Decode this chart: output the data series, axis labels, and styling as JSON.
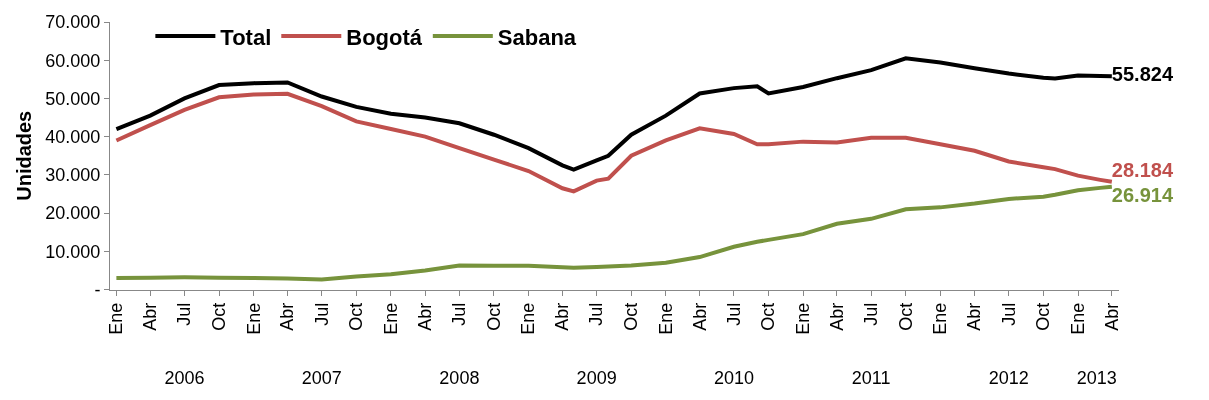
{
  "chart_data": {
    "type": "line",
    "ylabel": "Unidades",
    "x": [
      "2006-01",
      "2006-04",
      "2006-07",
      "2006-10",
      "2007-01",
      "2007-04",
      "2007-07",
      "2007-10",
      "2008-01",
      "2008-04",
      "2008-07",
      "2008-10",
      "2009-01",
      "2009-04",
      "2009-05",
      "2009-07",
      "2009-08",
      "2009-10",
      "2010-01",
      "2010-04",
      "2010-07",
      "2010-09",
      "2010-10",
      "2011-01",
      "2011-04",
      "2011-07",
      "2011-10",
      "2012-01",
      "2012-04",
      "2012-07",
      "2012-10",
      "2012-11",
      "2013-01",
      "2013-03",
      "2013-04"
    ],
    "series": [
      {
        "name": "Total",
        "color": "#000000",
        "values": [
          42000,
          45500,
          50000,
          53500,
          54000,
          54200,
          50500,
          47800,
          46000,
          45000,
          43500,
          40500,
          37000,
          32500,
          31400,
          33800,
          35000,
          40500,
          45500,
          51300,
          52700,
          53200,
          51300,
          53000,
          55300,
          57400,
          60500,
          59400,
          57900,
          56500,
          55400,
          55200,
          56000,
          55900,
          55824
        ],
        "value_labels": [
          null,
          null,
          null,
          null,
          null,
          null,
          null,
          null,
          null,
          null,
          null,
          null,
          null,
          null,
          null,
          null,
          null,
          null,
          null,
          null,
          null,
          null,
          null,
          null,
          null,
          null,
          null,
          null,
          null,
          null,
          null,
          null,
          null,
          null,
          "55.824"
        ]
      },
      {
        "name": "Bogotá",
        "color": "#c0504d",
        "values": [
          39000,
          43000,
          47000,
          50300,
          51000,
          51200,
          48000,
          44000,
          42000,
          40000,
          37000,
          34000,
          31000,
          26500,
          25700,
          28500,
          29000,
          35000,
          39000,
          42200,
          40700,
          38000,
          38000,
          38700,
          38500,
          39700,
          39700,
          38000,
          36300,
          33500,
          32000,
          31500,
          29800,
          28700,
          28184
        ],
        "value_labels": [
          null,
          null,
          null,
          null,
          null,
          null,
          null,
          null,
          null,
          null,
          null,
          null,
          null,
          null,
          null,
          null,
          null,
          null,
          null,
          null,
          null,
          null,
          null,
          null,
          null,
          null,
          null,
          null,
          null,
          null,
          null,
          null,
          null,
          null,
          "28.184"
        ]
      },
      {
        "name": "Sabana",
        "color": "#77933c",
        "values": [
          3000,
          3100,
          3200,
          3100,
          3000,
          2900,
          2600,
          3400,
          4000,
          5000,
          6300,
          6200,
          6200,
          5800,
          5700,
          5900,
          6000,
          6300,
          7000,
          8500,
          11200,
          12500,
          13000,
          14500,
          17200,
          18500,
          21000,
          21500,
          22500,
          23700,
          24300,
          24800,
          26000,
          26600,
          26914
        ],
        "value_labels": [
          null,
          null,
          null,
          null,
          null,
          null,
          null,
          null,
          null,
          null,
          null,
          null,
          null,
          null,
          null,
          null,
          null,
          null,
          null,
          null,
          null,
          null,
          null,
          null,
          null,
          null,
          null,
          null,
          null,
          null,
          null,
          null,
          null,
          null,
          "26.914"
        ]
      }
    ],
    "xlim": [
      "2005-12-15",
      "2013-04-20"
    ],
    "xticks": [
      {
        "value": "2006-01",
        "label": "Ene"
      },
      {
        "value": "2006-04",
        "label": "Abr"
      },
      {
        "value": "2006-07",
        "label": "Jul"
      },
      {
        "value": "2006-10",
        "label": "Oct"
      },
      {
        "value": "2007-01",
        "label": "Ene"
      },
      {
        "value": "2007-04",
        "label": "Abr"
      },
      {
        "value": "2007-07",
        "label": "Jul"
      },
      {
        "value": "2007-10",
        "label": "Oct"
      },
      {
        "value": "2008-01",
        "label": "Ene"
      },
      {
        "value": "2008-04",
        "label": "Abr"
      },
      {
        "value": "2008-07",
        "label": "Jul"
      },
      {
        "value": "2008-10",
        "label": "Oct"
      },
      {
        "value": "2009-01",
        "label": "Ene"
      },
      {
        "value": "2009-04",
        "label": "Abr"
      },
      {
        "value": "2009-07",
        "label": "Jul"
      },
      {
        "value": "2009-10",
        "label": "Oct"
      },
      {
        "value": "2010-01",
        "label": "Ene"
      },
      {
        "value": "2010-04",
        "label": "Abr"
      },
      {
        "value": "2010-07",
        "label": "Jul"
      },
      {
        "value": "2010-10",
        "label": "Oct"
      },
      {
        "value": "2011-01",
        "label": "Ene"
      },
      {
        "value": "2011-04",
        "label": "Abr"
      },
      {
        "value": "2011-07",
        "label": "Jul"
      },
      {
        "value": "2011-10",
        "label": "Oct"
      },
      {
        "value": "2012-01",
        "label": "Ene"
      },
      {
        "value": "2012-04",
        "label": "Abr"
      },
      {
        "value": "2012-07",
        "label": "Jul"
      },
      {
        "value": "2012-10",
        "label": "Oct"
      },
      {
        "value": "2013-01",
        "label": "Ene"
      },
      {
        "value": "2013-04",
        "label": "Abr"
      }
    ],
    "x2lim": [
      "2005-12-15",
      "2013-04-20"
    ],
    "x2ticks": [
      {
        "value": "2006-07-01",
        "label": "2006"
      },
      {
        "value": "2007-07-01",
        "label": "2007"
      },
      {
        "value": "2008-07-01",
        "label": "2008"
      },
      {
        "value": "2009-07-01",
        "label": "2009"
      },
      {
        "value": "2010-07-01",
        "label": "2010"
      },
      {
        "value": "2011-07-01",
        "label": "2011"
      },
      {
        "value": "2012-07-01",
        "label": "2012"
      },
      {
        "value": "2013-02-20",
        "label": "2013"
      }
    ],
    "ylim": [
      0,
      70000
    ],
    "yticks": [
      {
        "value": 0,
        "label": "-"
      },
      {
        "value": 10000,
        "label": "10.000"
      },
      {
        "value": 20000,
        "label": "20.000"
      },
      {
        "value": 30000,
        "label": "30.000"
      },
      {
        "value": 40000,
        "label": "40.000"
      },
      {
        "value": 50000,
        "label": "50.000"
      },
      {
        "value": 60000,
        "label": "60.000"
      },
      {
        "value": 70000,
        "label": "70.000"
      }
    ],
    "legend": "top left",
    "marker": "none",
    "line_style": "solid"
  }
}
